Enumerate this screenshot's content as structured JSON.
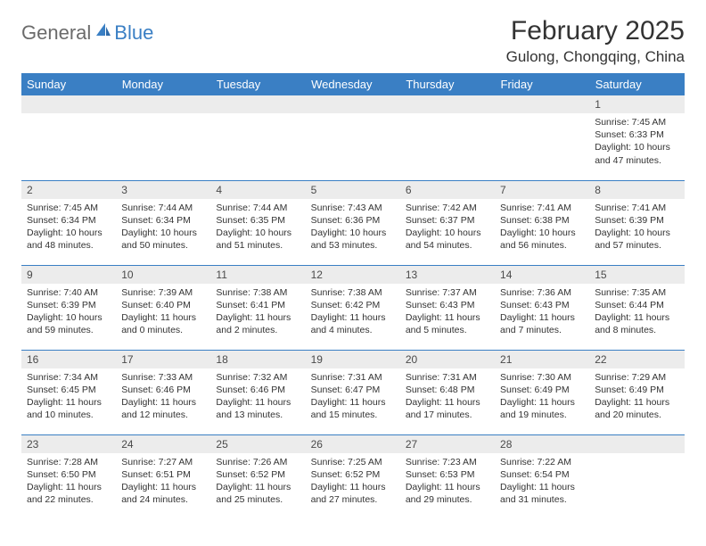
{
  "logo": {
    "text1": "General",
    "text2": "Blue",
    "icon_color": "#3a7fc4"
  },
  "header": {
    "month_title": "February 2025",
    "location": "Gulong, Chongqing, China"
  },
  "colors": {
    "header_bg": "#3a7fc4",
    "header_text": "#ffffff",
    "daynum_bg": "#ececec",
    "border": "#3a7fc4",
    "body_text": "#333333"
  },
  "day_labels": [
    "Sunday",
    "Monday",
    "Tuesday",
    "Wednesday",
    "Thursday",
    "Friday",
    "Saturday"
  ],
  "weeks": [
    [
      {
        "num": "",
        "sunrise": "",
        "sunset": "",
        "daylight": ""
      },
      {
        "num": "",
        "sunrise": "",
        "sunset": "",
        "daylight": ""
      },
      {
        "num": "",
        "sunrise": "",
        "sunset": "",
        "daylight": ""
      },
      {
        "num": "",
        "sunrise": "",
        "sunset": "",
        "daylight": ""
      },
      {
        "num": "",
        "sunrise": "",
        "sunset": "",
        "daylight": ""
      },
      {
        "num": "",
        "sunrise": "",
        "sunset": "",
        "daylight": ""
      },
      {
        "num": "1",
        "sunrise": "Sunrise: 7:45 AM",
        "sunset": "Sunset: 6:33 PM",
        "daylight": "Daylight: 10 hours and 47 minutes."
      }
    ],
    [
      {
        "num": "2",
        "sunrise": "Sunrise: 7:45 AM",
        "sunset": "Sunset: 6:34 PM",
        "daylight": "Daylight: 10 hours and 48 minutes."
      },
      {
        "num": "3",
        "sunrise": "Sunrise: 7:44 AM",
        "sunset": "Sunset: 6:34 PM",
        "daylight": "Daylight: 10 hours and 50 minutes."
      },
      {
        "num": "4",
        "sunrise": "Sunrise: 7:44 AM",
        "sunset": "Sunset: 6:35 PM",
        "daylight": "Daylight: 10 hours and 51 minutes."
      },
      {
        "num": "5",
        "sunrise": "Sunrise: 7:43 AM",
        "sunset": "Sunset: 6:36 PM",
        "daylight": "Daylight: 10 hours and 53 minutes."
      },
      {
        "num": "6",
        "sunrise": "Sunrise: 7:42 AM",
        "sunset": "Sunset: 6:37 PM",
        "daylight": "Daylight: 10 hours and 54 minutes."
      },
      {
        "num": "7",
        "sunrise": "Sunrise: 7:41 AM",
        "sunset": "Sunset: 6:38 PM",
        "daylight": "Daylight: 10 hours and 56 minutes."
      },
      {
        "num": "8",
        "sunrise": "Sunrise: 7:41 AM",
        "sunset": "Sunset: 6:39 PM",
        "daylight": "Daylight: 10 hours and 57 minutes."
      }
    ],
    [
      {
        "num": "9",
        "sunrise": "Sunrise: 7:40 AM",
        "sunset": "Sunset: 6:39 PM",
        "daylight": "Daylight: 10 hours and 59 minutes."
      },
      {
        "num": "10",
        "sunrise": "Sunrise: 7:39 AM",
        "sunset": "Sunset: 6:40 PM",
        "daylight": "Daylight: 11 hours and 0 minutes."
      },
      {
        "num": "11",
        "sunrise": "Sunrise: 7:38 AM",
        "sunset": "Sunset: 6:41 PM",
        "daylight": "Daylight: 11 hours and 2 minutes."
      },
      {
        "num": "12",
        "sunrise": "Sunrise: 7:38 AM",
        "sunset": "Sunset: 6:42 PM",
        "daylight": "Daylight: 11 hours and 4 minutes."
      },
      {
        "num": "13",
        "sunrise": "Sunrise: 7:37 AM",
        "sunset": "Sunset: 6:43 PM",
        "daylight": "Daylight: 11 hours and 5 minutes."
      },
      {
        "num": "14",
        "sunrise": "Sunrise: 7:36 AM",
        "sunset": "Sunset: 6:43 PM",
        "daylight": "Daylight: 11 hours and 7 minutes."
      },
      {
        "num": "15",
        "sunrise": "Sunrise: 7:35 AM",
        "sunset": "Sunset: 6:44 PM",
        "daylight": "Daylight: 11 hours and 8 minutes."
      }
    ],
    [
      {
        "num": "16",
        "sunrise": "Sunrise: 7:34 AM",
        "sunset": "Sunset: 6:45 PM",
        "daylight": "Daylight: 11 hours and 10 minutes."
      },
      {
        "num": "17",
        "sunrise": "Sunrise: 7:33 AM",
        "sunset": "Sunset: 6:46 PM",
        "daylight": "Daylight: 11 hours and 12 minutes."
      },
      {
        "num": "18",
        "sunrise": "Sunrise: 7:32 AM",
        "sunset": "Sunset: 6:46 PM",
        "daylight": "Daylight: 11 hours and 13 minutes."
      },
      {
        "num": "19",
        "sunrise": "Sunrise: 7:31 AM",
        "sunset": "Sunset: 6:47 PM",
        "daylight": "Daylight: 11 hours and 15 minutes."
      },
      {
        "num": "20",
        "sunrise": "Sunrise: 7:31 AM",
        "sunset": "Sunset: 6:48 PM",
        "daylight": "Daylight: 11 hours and 17 minutes."
      },
      {
        "num": "21",
        "sunrise": "Sunrise: 7:30 AM",
        "sunset": "Sunset: 6:49 PM",
        "daylight": "Daylight: 11 hours and 19 minutes."
      },
      {
        "num": "22",
        "sunrise": "Sunrise: 7:29 AM",
        "sunset": "Sunset: 6:49 PM",
        "daylight": "Daylight: 11 hours and 20 minutes."
      }
    ],
    [
      {
        "num": "23",
        "sunrise": "Sunrise: 7:28 AM",
        "sunset": "Sunset: 6:50 PM",
        "daylight": "Daylight: 11 hours and 22 minutes."
      },
      {
        "num": "24",
        "sunrise": "Sunrise: 7:27 AM",
        "sunset": "Sunset: 6:51 PM",
        "daylight": "Daylight: 11 hours and 24 minutes."
      },
      {
        "num": "25",
        "sunrise": "Sunrise: 7:26 AM",
        "sunset": "Sunset: 6:52 PM",
        "daylight": "Daylight: 11 hours and 25 minutes."
      },
      {
        "num": "26",
        "sunrise": "Sunrise: 7:25 AM",
        "sunset": "Sunset: 6:52 PM",
        "daylight": "Daylight: 11 hours and 27 minutes."
      },
      {
        "num": "27",
        "sunrise": "Sunrise: 7:23 AM",
        "sunset": "Sunset: 6:53 PM",
        "daylight": "Daylight: 11 hours and 29 minutes."
      },
      {
        "num": "28",
        "sunrise": "Sunrise: 7:22 AM",
        "sunset": "Sunset: 6:54 PM",
        "daylight": "Daylight: 11 hours and 31 minutes."
      },
      {
        "num": "",
        "sunrise": "",
        "sunset": "",
        "daylight": ""
      }
    ]
  ]
}
